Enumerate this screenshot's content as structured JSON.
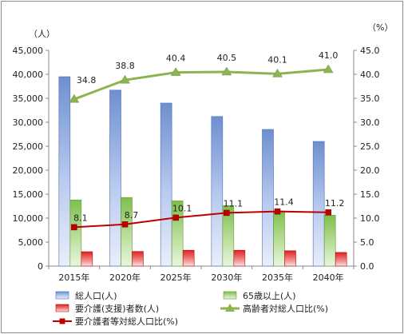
{
  "chart_data": {
    "type": "bar",
    "categories": [
      "2015年",
      "2020年",
      "2025年",
      "2030年",
      "2035年",
      "2040年"
    ],
    "left_unit": "（人）",
    "right_unit": "（%）",
    "left_axis": {
      "min": 0,
      "max": 45000,
      "step": 5000,
      "tick_labels": [
        "0",
        "5,000",
        "10,000",
        "15,000",
        "20,000",
        "25,000",
        "30,000",
        "35,000",
        "40,000",
        "45,000"
      ]
    },
    "right_axis": {
      "min": 0,
      "max": 45,
      "step": 5,
      "tick_labels": [
        "0.0",
        "5.0",
        "10.0",
        "15.0",
        "20.0",
        "25.0",
        "30.0",
        "35.0",
        "40.0",
        "45.0"
      ]
    },
    "bar_series": [
      {
        "name": "総人口(人)",
        "color": "#6e8fd0",
        "values": [
          39500,
          36700,
          34000,
          31200,
          28500,
          26000
        ]
      },
      {
        "name": "65歳以上(人)",
        "color": "#7fbf4d",
        "values": [
          13800,
          14300,
          13600,
          12600,
          11500,
          10600
        ]
      },
      {
        "name": "要介護(支援)者数(人)",
        "color": "#e02020",
        "values": [
          3000,
          3050,
          3300,
          3300,
          3200,
          2850
        ]
      }
    ],
    "line_series": [
      {
        "name": "高齢者対総人口比(%)",
        "color": "#8db452",
        "marker": "triangle",
        "values": [
          34.8,
          38.8,
          40.4,
          40.5,
          40.1,
          41.0
        ],
        "labels": [
          "34.8",
          "38.8",
          "40.4",
          "40.5",
          "40.1",
          "41.0"
        ]
      },
      {
        "name": "要介護者等対総人口比(%)",
        "color": "#c00000",
        "marker": "square",
        "values": [
          8.1,
          8.7,
          10.1,
          11.1,
          11.4,
          11.2
        ],
        "labels": [
          "8.1",
          "8.7",
          "10.1",
          "11.1",
          "11.4",
          "11.2"
        ]
      }
    ],
    "grid": false,
    "legend_position": "bottom"
  }
}
